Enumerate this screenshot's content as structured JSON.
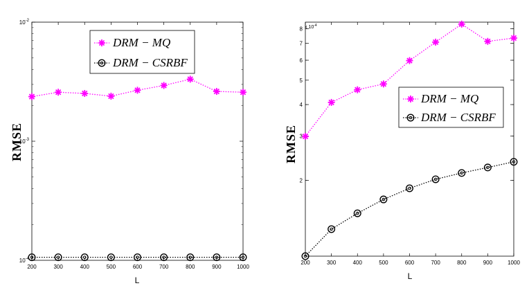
{
  "chart_data": [
    {
      "type": "line",
      "x": [
        200,
        300,
        400,
        500,
        600,
        700,
        800,
        900,
        1000
      ],
      "xticks": [
        "200",
        "300",
        "400",
        "500",
        "600",
        "700",
        "800",
        "900",
        "1000"
      ],
      "xlabel": "L",
      "ylabel": "RMSE",
      "yscale": "log",
      "ylim": [
        0.0001,
        0.01
      ],
      "yticks": [
        {
          "value": 0.01,
          "base": "10",
          "exp": "-2"
        },
        {
          "value": 0.001,
          "base": "10",
          "exp": "-3"
        },
        {
          "value": 0.0001,
          "base": "10",
          "exp": "-4"
        }
      ],
      "legend": "top-right",
      "series": [
        {
          "name": "DRM − MQ",
          "color": "#ff00ff",
          "marker": "star",
          "line": "dotted",
          "values": [
            0.00237,
            0.00258,
            0.00252,
            0.00239,
            0.00268,
            0.00294,
            0.00332,
            0.00262,
            0.00258
          ]
        },
        {
          "name": "DRM − CSRBF",
          "color": "#000000",
          "marker": "circle",
          "line": "dotted",
          "values": [
            0.000106,
            0.000106,
            0.000106,
            0.000106,
            0.000106,
            0.000106,
            0.000106,
            0.000106,
            0.000106
          ]
        }
      ]
    },
    {
      "type": "line",
      "x": [
        200,
        300,
        400,
        500,
        600,
        700,
        800,
        900,
        1000
      ],
      "xticks": [
        "200",
        "300",
        "400",
        "500",
        "600",
        "700",
        "800",
        "900",
        "1000"
      ],
      "xlabel": "L",
      "ylabel": "RMSE",
      "yscale": "log",
      "ylim": [
        0.0001,
        0.00085
      ],
      "multiplier": "x 10",
      "multiplier_exp": "-4",
      "yticks": [
        {
          "value": 0.0002,
          "label": "2"
        },
        {
          "value": 0.0003,
          "label": "3"
        },
        {
          "value": 0.0004,
          "label": "4"
        },
        {
          "value": 0.0005,
          "label": "5"
        },
        {
          "value": 0.0006,
          "label": "6"
        },
        {
          "value": 0.0007,
          "label": "7"
        },
        {
          "value": 0.0008,
          "label": "8"
        }
      ],
      "legend": "center-right",
      "series": [
        {
          "name": "DRM − MQ",
          "color": "#ff00ff",
          "marker": "star",
          "line": "dotted",
          "values": [
            0.000299,
            0.000408,
            0.000458,
            0.000483,
            0.000598,
            0.000708,
            0.000835,
            0.000713,
            0.000735
          ]
        },
        {
          "name": "DRM − CSRBF",
          "color": "#000000",
          "marker": "circle",
          "line": "dotted",
          "values": [
            0.0001,
            0.000128,
            0.000148,
            0.000168,
            0.000186,
            0.000202,
            0.000214,
            0.000225,
            0.000237
          ]
        }
      ]
    }
  ]
}
